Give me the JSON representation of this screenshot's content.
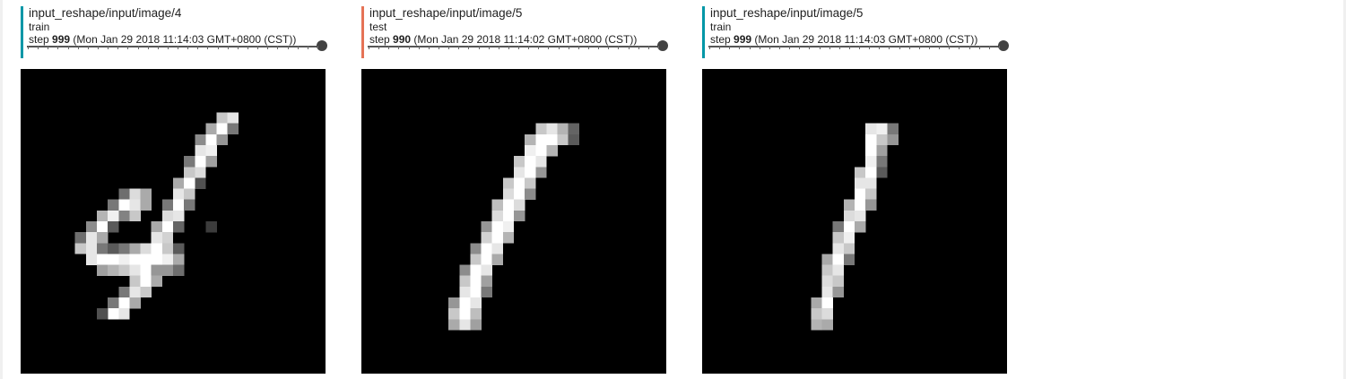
{
  "cards": [
    {
      "tag": "input_reshape/input/image/4",
      "run": "train",
      "step_prefix": "step",
      "step": "999",
      "timestamp": "(Mon Jan 29 2018 11:14:03 GMT+0800 (CST))",
      "run_color": "#0097a7",
      "slider_value": 1.0,
      "pixels": [
        [
          18,
          4,
          200
        ],
        [
          19,
          4,
          230
        ],
        [
          17,
          5,
          170
        ],
        [
          18,
          5,
          255
        ],
        [
          19,
          5,
          120
        ],
        [
          16,
          6,
          140
        ],
        [
          17,
          6,
          255
        ],
        [
          18,
          6,
          150
        ],
        [
          16,
          7,
          230
        ],
        [
          17,
          7,
          240
        ],
        [
          15,
          8,
          120
        ],
        [
          16,
          8,
          255
        ],
        [
          17,
          8,
          160
        ],
        [
          15,
          9,
          200
        ],
        [
          16,
          9,
          220
        ],
        [
          14,
          10,
          170
        ],
        [
          15,
          10,
          255
        ],
        [
          16,
          10,
          80
        ],
        [
          9,
          11,
          110
        ],
        [
          10,
          11,
          220
        ],
        [
          11,
          11,
          170
        ],
        [
          14,
          11,
          230
        ],
        [
          15,
          11,
          200
        ],
        [
          8,
          12,
          120
        ],
        [
          9,
          12,
          255
        ],
        [
          10,
          12,
          230
        ],
        [
          11,
          12,
          170
        ],
        [
          13,
          12,
          120
        ],
        [
          14,
          12,
          255
        ],
        [
          15,
          12,
          120
        ],
        [
          7,
          13,
          180
        ],
        [
          8,
          13,
          240
        ],
        [
          9,
          13,
          130
        ],
        [
          10,
          13,
          200
        ],
        [
          13,
          13,
          220
        ],
        [
          14,
          13,
          230
        ],
        [
          6,
          14,
          140
        ],
        [
          7,
          14,
          255
        ],
        [
          8,
          14,
          90
        ],
        [
          12,
          14,
          170
        ],
        [
          13,
          14,
          255
        ],
        [
          14,
          14,
          100
        ],
        [
          17,
          14,
          60
        ],
        [
          5,
          15,
          110
        ],
        [
          6,
          15,
          230
        ],
        [
          7,
          15,
          170
        ],
        [
          12,
          15,
          230
        ],
        [
          13,
          15,
          210
        ],
        [
          5,
          16,
          200
        ],
        [
          6,
          16,
          230
        ],
        [
          7,
          16,
          120
        ],
        [
          8,
          16,
          90
        ],
        [
          9,
          16,
          120
        ],
        [
          10,
          16,
          170
        ],
        [
          11,
          16,
          220
        ],
        [
          12,
          16,
          255
        ],
        [
          13,
          16,
          200
        ],
        [
          14,
          16,
          90
        ],
        [
          6,
          17,
          230
        ],
        [
          7,
          17,
          255
        ],
        [
          8,
          17,
          255
        ],
        [
          9,
          17,
          240
        ],
        [
          10,
          17,
          255
        ],
        [
          11,
          17,
          255
        ],
        [
          12,
          17,
          255
        ],
        [
          13,
          17,
          240
        ],
        [
          14,
          17,
          170
        ],
        [
          7,
          18,
          160
        ],
        [
          8,
          18,
          180
        ],
        [
          9,
          18,
          200
        ],
        [
          10,
          18,
          230
        ],
        [
          11,
          18,
          255
        ],
        [
          12,
          18,
          150
        ],
        [
          13,
          18,
          150
        ],
        [
          14,
          18,
          110
        ],
        [
          10,
          19,
          200
        ],
        [
          11,
          19,
          255
        ],
        [
          12,
          19,
          170
        ],
        [
          9,
          20,
          120
        ],
        [
          10,
          20,
          230
        ],
        [
          11,
          20,
          200
        ],
        [
          8,
          21,
          120
        ],
        [
          9,
          21,
          255
        ],
        [
          10,
          21,
          170
        ],
        [
          8,
          22,
          255
        ],
        [
          9,
          22,
          230
        ],
        [
          7,
          22,
          80
        ]
      ]
    },
    {
      "tag": "input_reshape/input/image/5",
      "run": "test",
      "step_prefix": "step",
      "step": "990",
      "timestamp": "(Mon Jan 29 2018 11:14:02 GMT+0800 (CST))",
      "run_color": "#e57356",
      "slider_value": 1.0,
      "pixels": [
        [
          16,
          5,
          200
        ],
        [
          17,
          5,
          230
        ],
        [
          18,
          5,
          180
        ],
        [
          19,
          5,
          100
        ],
        [
          15,
          6,
          180
        ],
        [
          16,
          6,
          255
        ],
        [
          17,
          6,
          255
        ],
        [
          18,
          6,
          200
        ],
        [
          19,
          6,
          90
        ],
        [
          15,
          7,
          240
        ],
        [
          16,
          7,
          255
        ],
        [
          17,
          7,
          180
        ],
        [
          14,
          8,
          200
        ],
        [
          15,
          8,
          255
        ],
        [
          16,
          8,
          230
        ],
        [
          14,
          9,
          230
        ],
        [
          15,
          9,
          255
        ],
        [
          16,
          9,
          150
        ],
        [
          13,
          10,
          200
        ],
        [
          14,
          10,
          255
        ],
        [
          15,
          10,
          200
        ],
        [
          13,
          11,
          220
        ],
        [
          14,
          11,
          255
        ],
        [
          15,
          11,
          140
        ],
        [
          12,
          12,
          190
        ],
        [
          13,
          12,
          255
        ],
        [
          14,
          12,
          220
        ],
        [
          12,
          13,
          220
        ],
        [
          13,
          13,
          255
        ],
        [
          14,
          13,
          150
        ],
        [
          11,
          14,
          150
        ],
        [
          12,
          14,
          255
        ],
        [
          13,
          14,
          240
        ],
        [
          11,
          15,
          210
        ],
        [
          12,
          15,
          255
        ],
        [
          13,
          15,
          180
        ],
        [
          10,
          16,
          140
        ],
        [
          11,
          16,
          255
        ],
        [
          12,
          16,
          230
        ],
        [
          10,
          17,
          200
        ],
        [
          11,
          17,
          255
        ],
        [
          12,
          17,
          170
        ],
        [
          9,
          18,
          140
        ],
        [
          10,
          18,
          255
        ],
        [
          11,
          18,
          230
        ],
        [
          9,
          19,
          200
        ],
        [
          10,
          19,
          255
        ],
        [
          11,
          19,
          160
        ],
        [
          9,
          20,
          230
        ],
        [
          10,
          20,
          255
        ],
        [
          11,
          20,
          120
        ],
        [
          8,
          21,
          150
        ],
        [
          9,
          21,
          255
        ],
        [
          10,
          21,
          230
        ],
        [
          8,
          22,
          200
        ],
        [
          9,
          22,
          255
        ],
        [
          10,
          22,
          190
        ],
        [
          8,
          23,
          170
        ],
        [
          9,
          23,
          230
        ],
        [
          10,
          23,
          160
        ]
      ]
    },
    {
      "tag": "input_reshape/input/image/5",
      "run": "train",
      "step_prefix": "step",
      "step": "999",
      "timestamp": "(Mon Jan 29 2018 11:14:03 GMT+0800 (CST))",
      "run_color": "#0097a7",
      "slider_value": 1.0,
      "pixels": [
        [
          15,
          5,
          230
        ],
        [
          16,
          5,
          240
        ],
        [
          17,
          5,
          120
        ],
        [
          15,
          6,
          255
        ],
        [
          16,
          6,
          200
        ],
        [
          17,
          6,
          150
        ],
        [
          15,
          7,
          255
        ],
        [
          16,
          7,
          160
        ],
        [
          15,
          8,
          240
        ],
        [
          16,
          8,
          120
        ],
        [
          14,
          9,
          200
        ],
        [
          15,
          9,
          255
        ],
        [
          16,
          9,
          90
        ],
        [
          14,
          10,
          230
        ],
        [
          15,
          10,
          230
        ],
        [
          14,
          11,
          255
        ],
        [
          15,
          11,
          200
        ],
        [
          13,
          12,
          180
        ],
        [
          14,
          12,
          255
        ],
        [
          15,
          12,
          150
        ],
        [
          13,
          13,
          220
        ],
        [
          14,
          13,
          230
        ],
        [
          12,
          14,
          120
        ],
        [
          13,
          14,
          255
        ],
        [
          14,
          14,
          170
        ],
        [
          12,
          15,
          200
        ],
        [
          13,
          15,
          240
        ],
        [
          12,
          16,
          230
        ],
        [
          13,
          16,
          200
        ],
        [
          11,
          17,
          170
        ],
        [
          12,
          17,
          255
        ],
        [
          13,
          17,
          120
        ],
        [
          11,
          18,
          200
        ],
        [
          12,
          18,
          230
        ],
        [
          11,
          19,
          220
        ],
        [
          12,
          19,
          200
        ],
        [
          11,
          20,
          230
        ],
        [
          12,
          20,
          150
        ],
        [
          10,
          21,
          170
        ],
        [
          11,
          21,
          255
        ],
        [
          10,
          22,
          200
        ],
        [
          11,
          22,
          220
        ],
        [
          10,
          23,
          180
        ],
        [
          11,
          23,
          170
        ]
      ]
    }
  ]
}
